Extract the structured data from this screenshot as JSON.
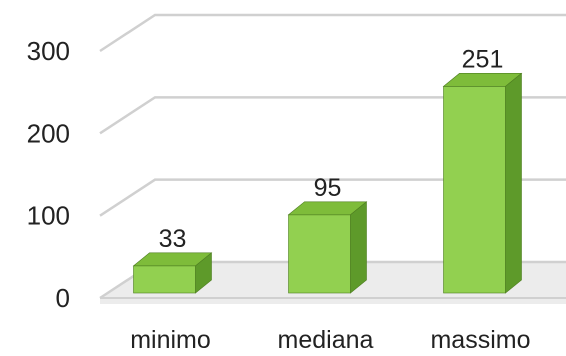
{
  "chart_data": {
    "type": "bar",
    "categories": [
      "minimo",
      "mediana",
      "massimo"
    ],
    "values": [
      33,
      95,
      251
    ],
    "data_labels": [
      "33",
      "95",
      "251"
    ],
    "yticks": [
      0,
      100,
      200,
      300
    ],
    "ytick_labels": [
      "0",
      "100",
      "200",
      "300"
    ],
    "ylim": [
      0,
      300
    ],
    "grid": true,
    "style": "3d-column",
    "colors": {
      "bar_front": "#92d050",
      "bar_top": "#7ebc3a",
      "bar_side": "#5e9a2a",
      "bar_edge": "#4f7f22",
      "grid": "#d0d0d0",
      "floor": "#ececec"
    }
  }
}
